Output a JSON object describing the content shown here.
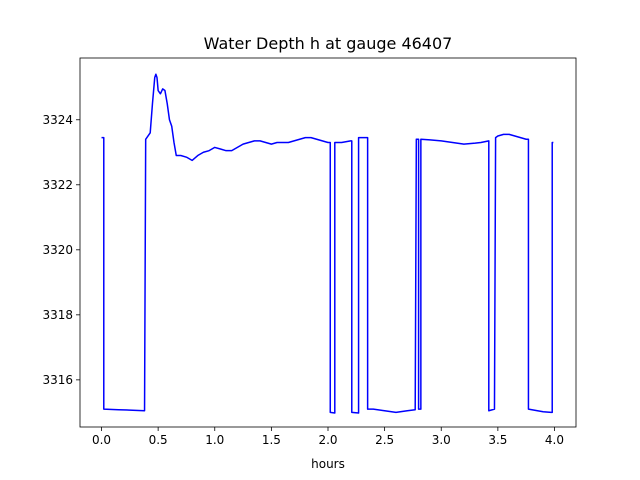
{
  "chart_data": {
    "type": "line",
    "title": "Water Depth h at gauge 46407",
    "xlabel": "hours",
    "ylabel": "",
    "xlim": [
      -0.19,
      4.19
    ],
    "ylim": [
      3314.55,
      3325.9
    ],
    "xticks": [
      0.0,
      0.5,
      1.0,
      1.5,
      2.0,
      2.5,
      3.0,
      3.5,
      4.0
    ],
    "xtick_labels": [
      "0.0",
      "0.5",
      "1.0",
      "1.5",
      "2.0",
      "2.5",
      "3.0",
      "3.5",
      "4.0"
    ],
    "yticks": [
      3316,
      3318,
      3320,
      3322,
      3324
    ],
    "ytick_labels": [
      "3316",
      "3318",
      "3320",
      "3322",
      "3324"
    ],
    "grid": false,
    "series": [
      {
        "color": "#0000ff",
        "x": [
          0.0,
          0.02,
          0.02,
          0.15,
          0.25,
          0.38,
          0.39,
          0.43,
          0.45,
          0.47,
          0.48,
          0.49,
          0.5,
          0.52,
          0.54,
          0.56,
          0.58,
          0.6,
          0.62,
          0.64,
          0.66,
          0.68,
          0.7,
          0.75,
          0.8,
          0.85,
          0.9,
          0.95,
          1.0,
          1.05,
          1.1,
          1.15,
          1.2,
          1.25,
          1.3,
          1.35,
          1.4,
          1.45,
          1.5,
          1.55,
          1.6,
          1.65,
          1.7,
          1.75,
          1.8,
          1.85,
          1.9,
          1.95,
          2.0,
          2.02,
          2.02,
          2.06,
          2.06,
          2.12,
          2.2,
          2.21,
          2.21,
          2.27,
          2.27,
          2.35,
          2.35,
          2.4,
          2.5,
          2.6,
          2.7,
          2.77,
          2.78,
          2.8,
          2.8,
          2.82,
          2.82,
          2.9,
          3.0,
          3.1,
          3.2,
          3.3,
          3.35,
          3.42,
          3.42,
          3.47,
          3.48,
          3.5,
          3.55,
          3.6,
          3.65,
          3.7,
          3.75,
          3.77,
          3.77,
          3.85,
          3.9,
          3.97,
          3.98,
          3.98,
          3.99
        ],
        "y": [
          3323.45,
          3323.45,
          3315.1,
          3315.08,
          3315.07,
          3315.05,
          3323.4,
          3323.6,
          3324.5,
          3325.3,
          3325.4,
          3325.3,
          3324.9,
          3324.8,
          3324.95,
          3324.9,
          3324.5,
          3324.0,
          3323.8,
          3323.3,
          3322.9,
          3322.9,
          3322.9,
          3322.85,
          3322.75,
          3322.9,
          3323.0,
          3323.05,
          3323.15,
          3323.1,
          3323.05,
          3323.05,
          3323.15,
          3323.25,
          3323.3,
          3323.35,
          3323.35,
          3323.3,
          3323.25,
          3323.3,
          3323.3,
          3323.3,
          3323.35,
          3323.4,
          3323.45,
          3323.45,
          3323.4,
          3323.35,
          3323.3,
          3323.3,
          3315.0,
          3314.98,
          3323.3,
          3323.3,
          3323.35,
          3323.35,
          3315.0,
          3314.98,
          3323.45,
          3323.45,
          3315.1,
          3315.1,
          3315.05,
          3315.0,
          3315.05,
          3315.08,
          3323.4,
          3323.4,
          3315.1,
          3315.1,
          3323.4,
          3323.38,
          3323.35,
          3323.3,
          3323.25,
          3323.28,
          3323.3,
          3323.35,
          3315.05,
          3315.1,
          3323.45,
          3323.5,
          3323.55,
          3323.55,
          3323.5,
          3323.45,
          3323.4,
          3323.4,
          3315.1,
          3315.05,
          3315.02,
          3315.0,
          3315.0,
          3323.3,
          3323.3
        ]
      }
    ]
  }
}
